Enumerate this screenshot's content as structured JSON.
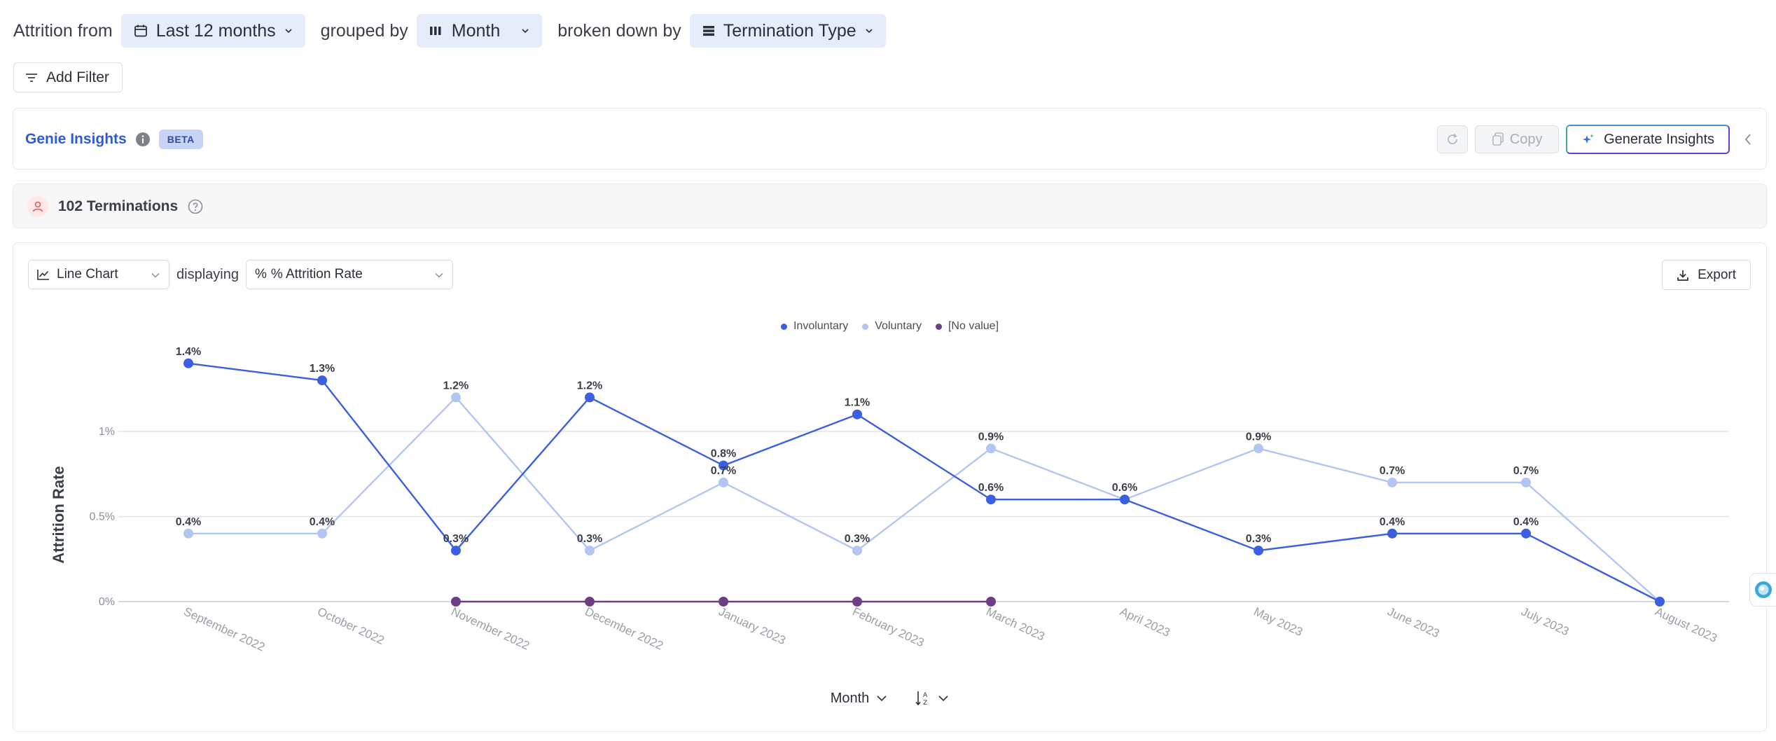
{
  "query": {
    "prefix": "Attrition from",
    "period": "Last 12 months",
    "grouped_label": "grouped by",
    "grouping": "Month",
    "broken_label": "broken down by",
    "breakdown": "Termination Type"
  },
  "filters": {
    "add_label": "Add Filter"
  },
  "genie": {
    "title": "Genie Insights",
    "badge": "BETA",
    "copy_label": "Copy",
    "generate_label": "Generate Insights"
  },
  "summary": {
    "count_label": "102 Terminations"
  },
  "chart_controls": {
    "chart_type": "Line Chart",
    "displaying_label": "displaying",
    "metric": "% Attrition Rate",
    "export_label": "Export",
    "sort_field": "Month"
  },
  "colors": {
    "involuntary": "#3b5fe0",
    "voluntary": "#b3c5f3",
    "no_value": "#6e3d85",
    "accent": "#2f5bd3"
  },
  "chart_data": {
    "type": "line",
    "ylabel": "Attrition Rate",
    "xlabel": "",
    "ylim": [
      0,
      1.5
    ],
    "yticks": [
      {
        "value": 0,
        "label": "0%"
      },
      {
        "value": 0.5,
        "label": "0.5%"
      },
      {
        "value": 1,
        "label": "1%"
      }
    ],
    "categories": [
      "September 2022",
      "October 2022",
      "November 2022",
      "December 2022",
      "January 2023",
      "February 2023",
      "March 2023",
      "April 2023",
      "May 2023",
      "June 2023",
      "July 2023",
      "August 2023"
    ],
    "legend_position": "top-center",
    "series": [
      {
        "name": "Involuntary",
        "color": "#3b5fe0",
        "values": [
          1.4,
          1.3,
          0.3,
          1.2,
          0.8,
          1.1,
          0.6,
          0.6,
          0.3,
          0.4,
          0.4,
          0
        ],
        "labels": [
          "1.4%",
          "1.3%",
          "0.3%",
          "1.2%",
          "0.8%",
          "1.1%",
          "0.6%",
          "0.6%",
          "0.3%",
          "0.4%",
          "0.4%",
          ""
        ]
      },
      {
        "name": "Voluntary",
        "color": "#b3c5f3",
        "values": [
          0.4,
          0.4,
          1.2,
          0.3,
          0.7,
          0.3,
          0.9,
          0.6,
          0.9,
          0.7,
          0.7,
          0
        ],
        "labels": [
          "0.4%",
          "0.4%",
          "1.2%",
          "0.3%",
          "0.7%",
          "0.3%",
          "0.9%",
          "",
          "0.9%",
          "0.7%",
          "0.7%",
          ""
        ]
      },
      {
        "name": "[No value]",
        "color": "#6e3d85",
        "values": [
          null,
          null,
          0,
          0,
          0,
          0,
          0,
          null,
          null,
          null,
          null,
          null
        ],
        "labels": [
          "",
          "",
          "",
          "",
          "",
          "",
          "",
          "",
          "",
          "",
          "",
          ""
        ]
      }
    ]
  }
}
